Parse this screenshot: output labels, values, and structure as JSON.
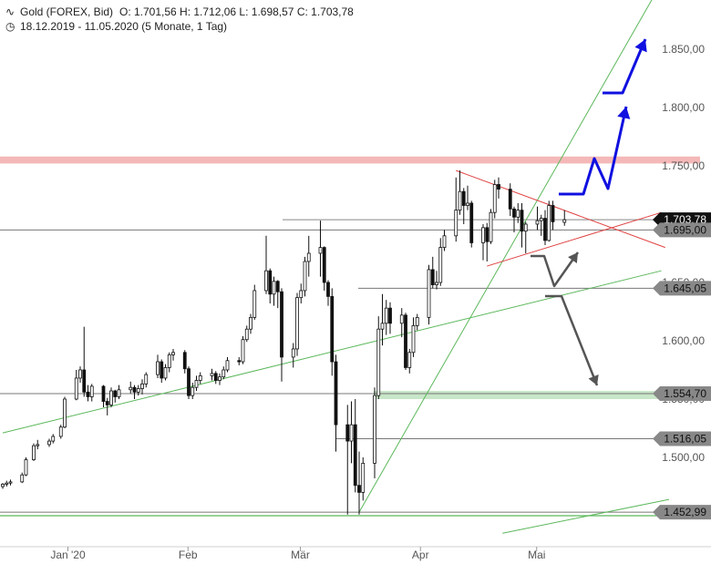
{
  "header": {
    "instrument": "Gold (FOREX, Bid)",
    "ohlc": "O: 1.701,56  H: 1.712,06  L: 1.698,57  C: 1.703,78",
    "range": "18.12.2019 - 11.05.2020  (5 Monate, 1 Tag)"
  },
  "chart_data": {
    "type": "candlestick",
    "title": "Gold (FOREX, Bid)",
    "x_range": [
      "2019-12-18",
      "2020-05-11"
    ],
    "ylim": [
      1440,
      1875
    ],
    "x_ticks": [
      "Jan '20",
      "Feb",
      "Mär",
      "Apr",
      "Mai"
    ],
    "y_ticks": [
      "1.500,00",
      "1.550,00",
      "1.600,00",
      "1.650,00",
      "1.700,00",
      "1.750,00",
      "1.800,00",
      "1.850,00"
    ],
    "y_tick_values": [
      1500,
      1550,
      1600,
      1650,
      1700,
      1750,
      1800,
      1850
    ],
    "price_tags": [
      {
        "label": "1.703,78",
        "value": 1703.78,
        "style": "current"
      },
      {
        "label": "1.695,00",
        "value": 1695.0,
        "style": "level"
      },
      {
        "label": "1.645,05",
        "value": 1645.05,
        "style": "level"
      },
      {
        "label": "1.554,70",
        "value": 1554.7,
        "style": "level"
      },
      {
        "label": "1.516,05",
        "value": 1516.05,
        "style": "level"
      },
      {
        "label": "1.452,99",
        "value": 1452.99,
        "style": "level"
      }
    ],
    "resistance_zone": {
      "from": 1752,
      "to": 1758
    },
    "support_zone": {
      "from": 1550,
      "to": 1557
    },
    "colors": {
      "up": "#ffffff",
      "down": "#111111",
      "green_line": "#5cb85c",
      "red_line": "#e04040",
      "blue_arrow": "#1010e0",
      "grey_arrow": "#555555",
      "red_zone": "#f5b8b8",
      "green_zone": "#c8e6c8"
    }
  }
}
